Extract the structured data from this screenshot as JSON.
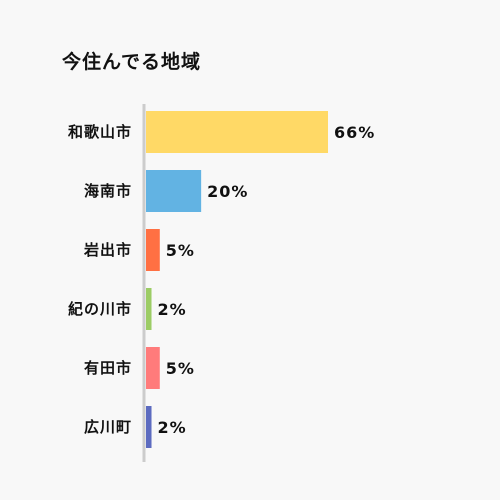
{
  "chart_data": {
    "type": "bar",
    "orientation": "horizontal",
    "title": "今住んでる地域",
    "xlabel": "",
    "ylabel": "",
    "unit": "%",
    "xlim": [
      0,
      100
    ],
    "grid": false,
    "legend": "none",
    "categories": [
      "和歌山市",
      "海南市",
      "岩出市",
      "紀の川市",
      "有田市",
      "広川町"
    ],
    "values": [
      66,
      20,
      5,
      2,
      5,
      2
    ],
    "value_labels": [
      "66%",
      "20%",
      "5%",
      "2%",
      "5%",
      "2%"
    ],
    "colors": [
      "#ffd966",
      "#62b3e3",
      "#ff7043",
      "#9ccc65",
      "#ff7b7b",
      "#5c6bc0"
    ],
    "axis_color": "#cccccc"
  }
}
